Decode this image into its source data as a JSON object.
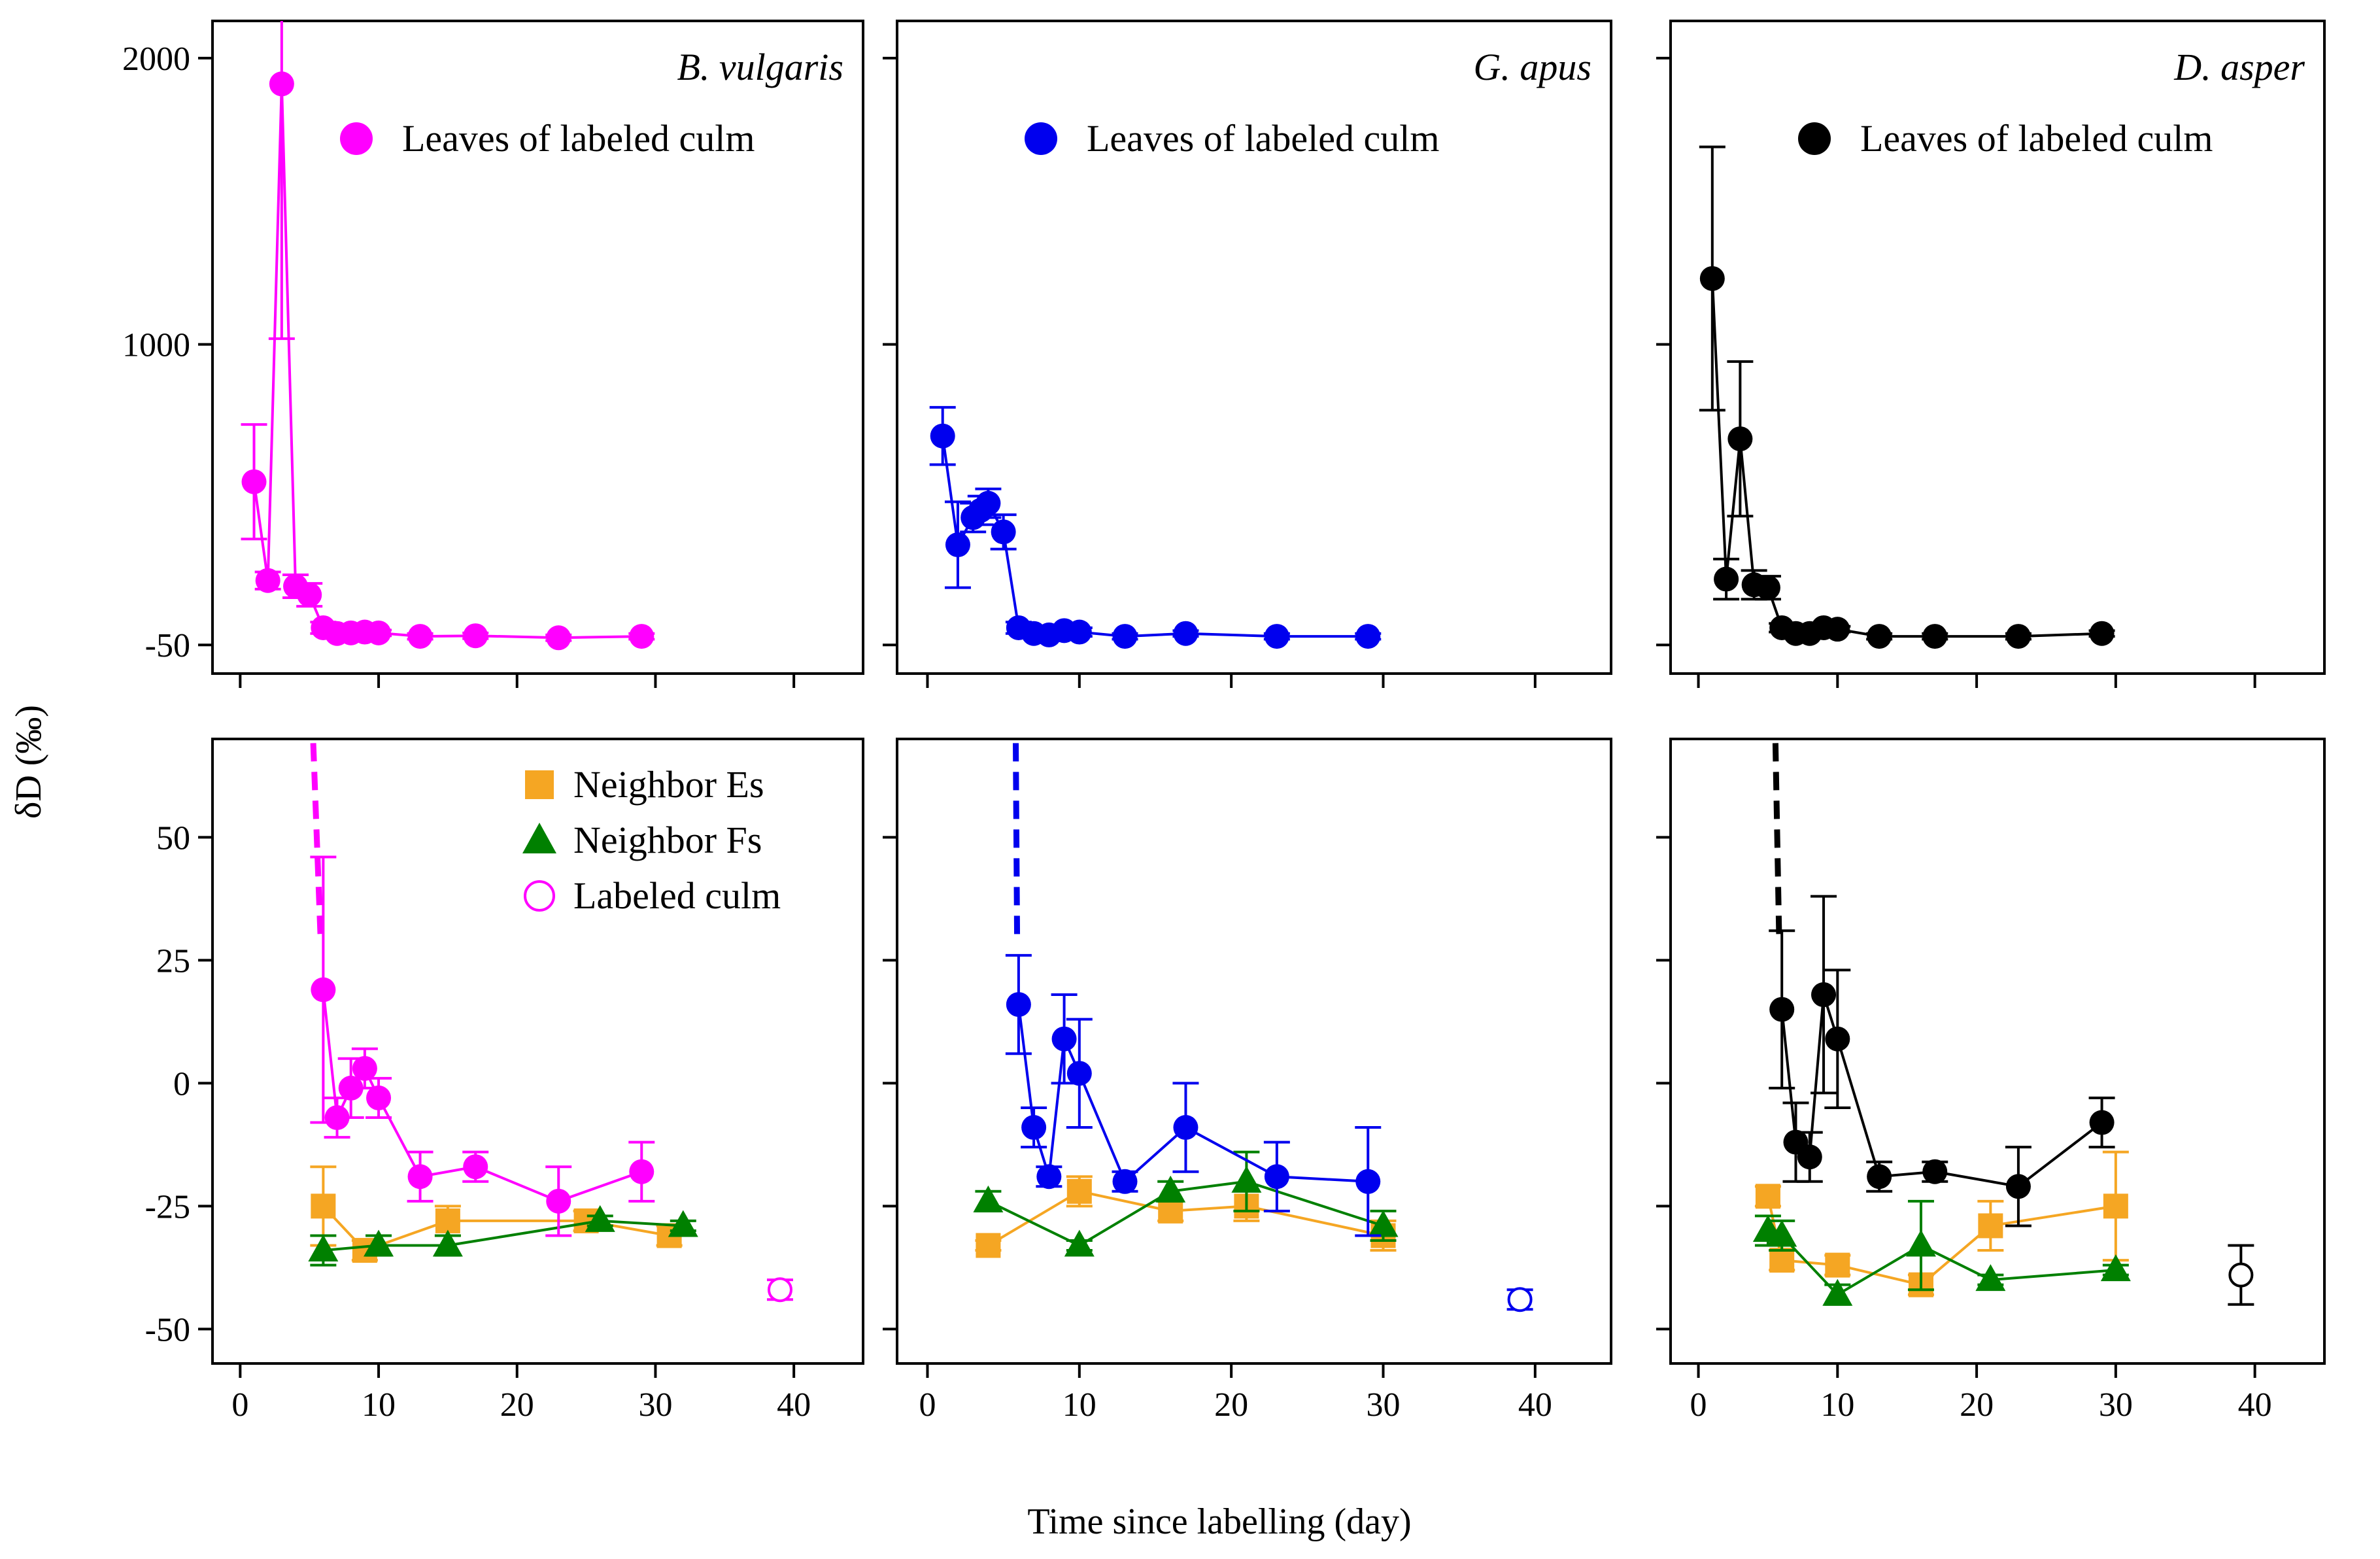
{
  "figure": {
    "xlabel": "Time since labelling (day)",
    "ylabel": "δD (‰)",
    "x_ticks": [
      "0",
      "10",
      "20",
      "30",
      "40"
    ],
    "top_y_ticks": [
      "2000",
      "1000",
      "-50"
    ],
    "bottom_y_ticks": [
      "50",
      "25",
      "0",
      "-25",
      "-50"
    ]
  },
  "colors": {
    "magenta": "#ff00ff",
    "blue": "#0000ee",
    "black": "#000000",
    "orange": "#f5a623",
    "green": "#008000"
  },
  "chart_data": [
    {
      "type": "line",
      "panel": "top-left",
      "species": "B. vulgaris",
      "legend": [
        "Leaves of labeled culm"
      ],
      "xlim": [
        -2,
        45
      ],
      "ylim": [
        -150,
        2130
      ],
      "yticks": [
        2000,
        1000,
        -50
      ],
      "series": [
        {
          "name": "Leaves of labeled culm",
          "color": "magenta",
          "marker": "circle",
          "x": [
            1,
            2,
            3,
            4,
            5,
            6,
            7,
            8,
            9,
            10,
            13,
            17,
            23,
            29
          ],
          "y": [
            520,
            175,
            1910,
            155,
            125,
            10,
            -10,
            -8,
            -5,
            -8,
            -20,
            -18,
            -25,
            -20
          ],
          "err": [
            200,
            30,
            890,
            40,
            40,
            20,
            10,
            10,
            10,
            10,
            10,
            10,
            10,
            10
          ]
        }
      ]
    },
    {
      "type": "line",
      "panel": "top-center",
      "species": "G. apus",
      "legend": [
        "Leaves of labeled culm"
      ],
      "xlim": [
        -2,
        45
      ],
      "ylim": [
        -150,
        2130
      ],
      "yticks": [
        2000,
        1000,
        -50
      ],
      "series": [
        {
          "name": "Leaves of labeled culm",
          "color": "blue",
          "marker": "circle",
          "x": [
            1,
            2,
            3,
            3.5,
            4,
            5,
            6,
            7,
            8,
            9,
            10,
            13,
            17,
            23,
            29
          ],
          "y": [
            680,
            300,
            395,
            420,
            445,
            345,
            10,
            -10,
            -15,
            0,
            -5,
            -20,
            -10,
            -20,
            -20
          ],
          "err": [
            100,
            150,
            50,
            50,
            50,
            60,
            20,
            15,
            15,
            15,
            15,
            10,
            10,
            10,
            10
          ]
        }
      ]
    },
    {
      "type": "line",
      "panel": "top-right",
      "species": "D. asper",
      "legend": [
        "Leaves of labeled culm"
      ],
      "xlim": [
        -2,
        45
      ],
      "ylim": [
        -150,
        2130
      ],
      "yticks": [
        2000,
        1000,
        -50
      ],
      "series": [
        {
          "name": "Leaves of labeled culm",
          "color": "black",
          "marker": "circle",
          "x": [
            1,
            2,
            3,
            4,
            5,
            6,
            7,
            8,
            9,
            10,
            13,
            17,
            23,
            29
          ],
          "y": [
            1230,
            180,
            670,
            160,
            150,
            10,
            -10,
            -10,
            10,
            5,
            -20,
            -20,
            -20,
            -10
          ],
          "err": [
            460,
            70,
            270,
            50,
            40,
            15,
            10,
            10,
            10,
            10,
            10,
            10,
            10,
            10
          ]
        }
      ]
    },
    {
      "type": "line",
      "panel": "bottom-left",
      "legend": [
        "Neighbor Es",
        "Neighbor Fs",
        "Labeled culm"
      ],
      "xlim": [
        -2,
        45
      ],
      "ylim": [
        -57,
        70
      ],
      "yticks": [
        50,
        25,
        0,
        -25,
        -50
      ],
      "series": [
        {
          "name": "Leaves of labeled culm",
          "color": "magenta",
          "marker": "circle",
          "x": [
            6,
            7,
            8,
            9,
            10,
            13,
            17,
            23,
            29
          ],
          "y": [
            19,
            -7,
            -1,
            3,
            -3,
            -19,
            -17,
            -24,
            -18
          ],
          "err": [
            27,
            4,
            6,
            4,
            4,
            5,
            3,
            7,
            6
          ]
        },
        {
          "name": "Neighbor Es",
          "color": "orange",
          "marker": "square",
          "x": [
            6,
            9,
            15,
            25,
            31
          ],
          "y": [
            -25,
            -34,
            -28,
            -28,
            -31
          ],
          "err": [
            8,
            2,
            3,
            2,
            2
          ]
        },
        {
          "name": "Neighbor Fs",
          "color": "green",
          "marker": "triangle",
          "x": [
            6,
            10,
            15,
            26,
            32
          ],
          "y": [
            -34,
            -33,
            -33,
            -28,
            -29
          ],
          "err": [
            3,
            2,
            2,
            1,
            1
          ]
        },
        {
          "name": "Labeled culm",
          "color": "magenta",
          "marker": "open-circle",
          "x": [
            39
          ],
          "y": [
            -42
          ],
          "err": [
            2
          ]
        }
      ],
      "dashed_segment": {
        "color": "magenta",
        "x": [
          5.2,
          5.8
        ],
        "y": [
          75,
          30
        ]
      }
    },
    {
      "type": "line",
      "panel": "bottom-center",
      "xlim": [
        -2,
        45
      ],
      "ylim": [
        -57,
        70
      ],
      "yticks": [
        50,
        25,
        0,
        -25,
        -50
      ],
      "series": [
        {
          "name": "Leaves of labeled culm",
          "color": "blue",
          "marker": "circle",
          "x": [
            6,
            7,
            8,
            9,
            10,
            13,
            17,
            23,
            29
          ],
          "y": [
            16,
            -9,
            -19,
            9,
            2,
            -20,
            -9,
            -19,
            -20
          ],
          "err": [
            10,
            4,
            2,
            9,
            11,
            2,
            9,
            7,
            11
          ]
        },
        {
          "name": "Neighbor Es",
          "color": "orange",
          "marker": "square",
          "x": [
            4,
            10,
            16,
            21,
            30
          ],
          "y": [
            -33,
            -22,
            -26,
            -25,
            -31
          ],
          "err": [
            1,
            3,
            2,
            3,
            3
          ]
        },
        {
          "name": "Neighbor Fs",
          "color": "green",
          "marker": "triangle",
          "x": [
            4,
            10,
            16,
            21,
            30
          ],
          "y": [
            -24,
            -33,
            -22,
            -20,
            -29
          ],
          "err": [
            2,
            1,
            2,
            6,
            3
          ]
        },
        {
          "name": "Labeled culm",
          "color": "blue",
          "marker": "open-circle",
          "x": [
            39
          ],
          "y": [
            -44
          ],
          "err": [
            2
          ]
        }
      ],
      "dashed_segment": {
        "color": "blue",
        "x": [
          5.8,
          5.9
        ],
        "y": [
          75,
          30
        ]
      }
    },
    {
      "type": "line",
      "panel": "bottom-right",
      "xlim": [
        -2,
        45
      ],
      "ylim": [
        -57,
        70
      ],
      "yticks": [
        50,
        25,
        0,
        -25,
        -50
      ],
      "series": [
        {
          "name": "Leaves of labeled culm",
          "color": "black",
          "marker": "circle",
          "x": [
            6,
            7,
            8,
            9,
            10,
            13,
            17,
            23,
            29
          ],
          "y": [
            15,
            -12,
            -15,
            18,
            9,
            -19,
            -18,
            -21,
            -8
          ],
          "err": [
            16,
            8,
            5,
            20,
            14,
            3,
            2,
            8,
            5
          ]
        },
        {
          "name": "Neighbor Es",
          "color": "orange",
          "marker": "square",
          "x": [
            5,
            6,
            10,
            16,
            21,
            30
          ],
          "y": [
            -23,
            -36,
            -37,
            -41,
            -29,
            -25
          ],
          "err": [
            2,
            2,
            2,
            2,
            5,
            11
          ]
        },
        {
          "name": "Neighbor Fs",
          "color": "green",
          "marker": "triangle",
          "x": [
            5,
            6,
            10,
            16,
            21,
            30
          ],
          "y": [
            -30,
            -31,
            -43,
            -33,
            -40,
            -38
          ],
          "err": [
            3,
            3,
            2,
            9,
            1,
            1
          ]
        },
        {
          "name": "Labeled culm",
          "color": "black",
          "marker": "open-circle",
          "x": [
            39
          ],
          "y": [
            -39
          ],
          "err": [
            6
          ]
        }
      ],
      "dashed_segment": {
        "color": "black",
        "x": [
          5.5,
          5.8
        ],
        "y": [
          75,
          30
        ]
      }
    }
  ]
}
